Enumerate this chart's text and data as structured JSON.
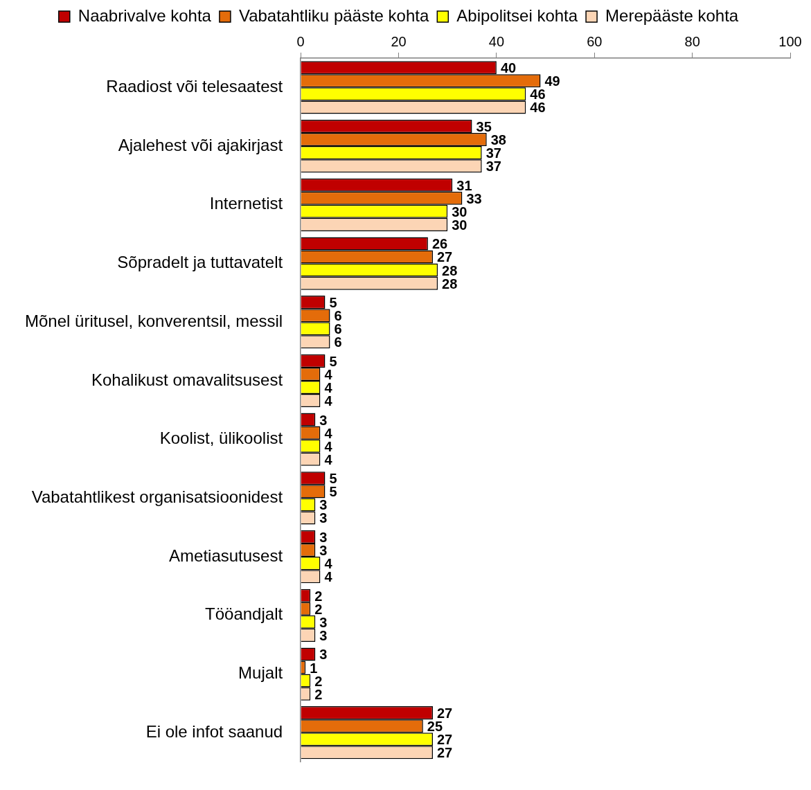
{
  "chart_data": {
    "type": "bar",
    "orientation": "horizontal",
    "categories": [
      "Raadiost või telesaatest",
      "Ajalehest või ajakirjast",
      "Internetist",
      "Sõpradelt ja tuttavatelt",
      "Mõnel üritusel, konverentsil, messil",
      "Kohalikust omavalitsusest",
      "Koolist, ülikoolist",
      "Vabatahtlikest organisatsioonidest",
      "Ametiasutusest",
      "Tööandjalt",
      "Mujalt",
      "Ei ole infot saanud"
    ],
    "series": [
      {
        "name": "Naabrivalve kohta",
        "color": "#c00000",
        "values": [
          40,
          35,
          31,
          26,
          5,
          5,
          3,
          5,
          3,
          2,
          3,
          27
        ]
      },
      {
        "name": "Vabatahtliku pääste kohta",
        "color": "#e46c0a",
        "values": [
          49,
          38,
          33,
          27,
          6,
          4,
          4,
          5,
          3,
          2,
          1,
          25
        ]
      },
      {
        "name": "Abipolitsei kohta",
        "color": "#ffff00",
        "values": [
          46,
          37,
          30,
          28,
          6,
          4,
          4,
          3,
          4,
          3,
          2,
          27
        ]
      },
      {
        "name": "Merepääste kohta",
        "color": "#fcd5b5",
        "values": [
          46,
          37,
          30,
          28,
          6,
          4,
          4,
          3,
          4,
          3,
          2,
          27
        ]
      }
    ],
    "xlim": [
      0,
      100
    ],
    "xticks": [
      0,
      20,
      40,
      60,
      80,
      100
    ],
    "grid": false,
    "legend": "top",
    "data_labels": true
  }
}
